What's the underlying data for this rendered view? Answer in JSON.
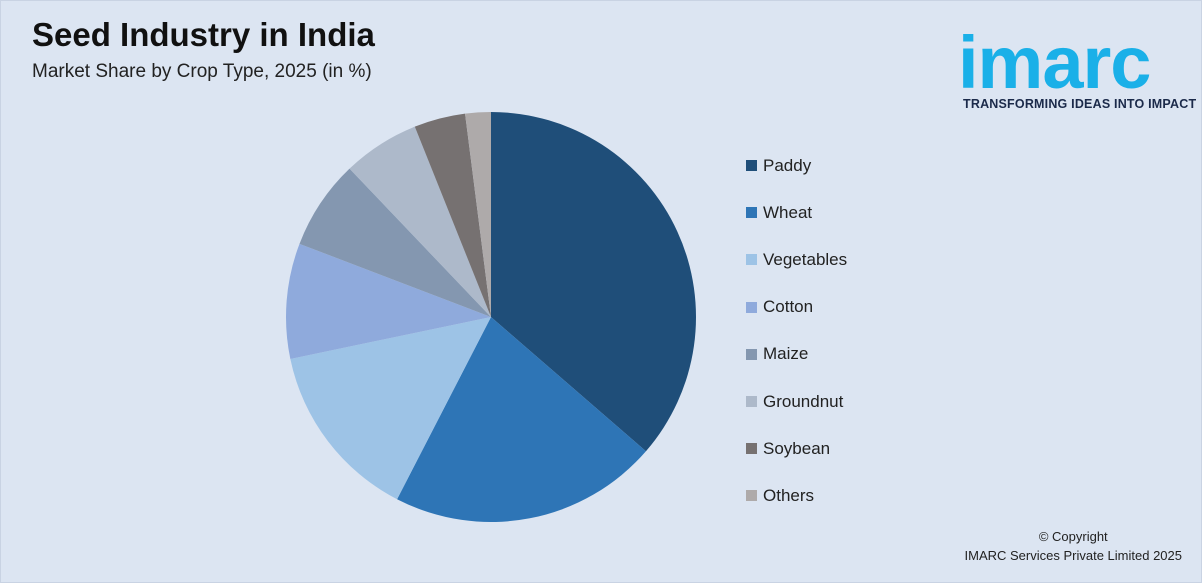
{
  "header": {
    "title": "Seed Industry in India",
    "subtitle": "Market Share by Crop Type, 2025 (in %)"
  },
  "logo": {
    "wordmark": "imarc",
    "tagline": "TRANSFORMING IDEAS INTO IMPACT"
  },
  "footer": {
    "copyright_line1": "© Copyright",
    "copyright_line2": "IMARC Services Private Limited 2025"
  },
  "colors": {
    "background": "#dce5f2",
    "logo_blue": "#1ab0e8"
  },
  "chart_data": {
    "type": "pie",
    "title": "Seed Industry in India",
    "subtitle": "Market Share by Crop Type, 2025 (in %)",
    "legend_position": "right",
    "start_angle": "12 o'clock, clockwise",
    "categories": [
      "Paddy",
      "Wheat",
      "Vegetables",
      "Cotton",
      "Maize",
      "Groundnut",
      "Soybean",
      "Others"
    ],
    "values": [
      36,
      21,
      14,
      9,
      7,
      6,
      4,
      2
    ],
    "colors": [
      "#1f4e79",
      "#2e75b6",
      "#9dc3e6",
      "#8faadc",
      "#8497b0",
      "#adb9ca",
      "#767171",
      "#aeaaaa"
    ]
  }
}
